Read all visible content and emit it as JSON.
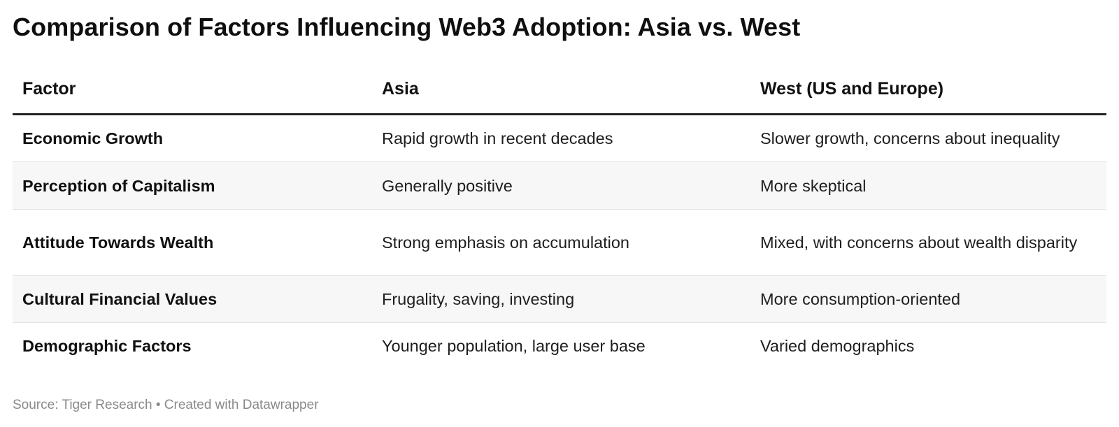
{
  "chart_data": {
    "type": "table",
    "title": "Comparison of Factors Influencing Web3 Adoption: Asia vs. West",
    "columns": [
      "Factor",
      "Asia",
      "West (US and Europe)"
    ],
    "rows": [
      [
        "Economic Growth",
        "Rapid growth in recent decades",
        "Slower growth, concerns about inequality"
      ],
      [
        "Perception of Capitalism",
        "Generally positive",
        "More skeptical"
      ],
      [
        "Attitude Towards Wealth",
        "Strong emphasis on accumulation",
        "Mixed, with concerns about wealth disparity"
      ],
      [
        "Cultural Financial Values",
        "Frugality, saving, investing",
        "More consumption-oriented"
      ],
      [
        "Demographic Factors",
        "Younger population, large user base",
        "Varied demographics"
      ]
    ],
    "footer": "Source: Tiger Research • Created with Datawrapper"
  }
}
